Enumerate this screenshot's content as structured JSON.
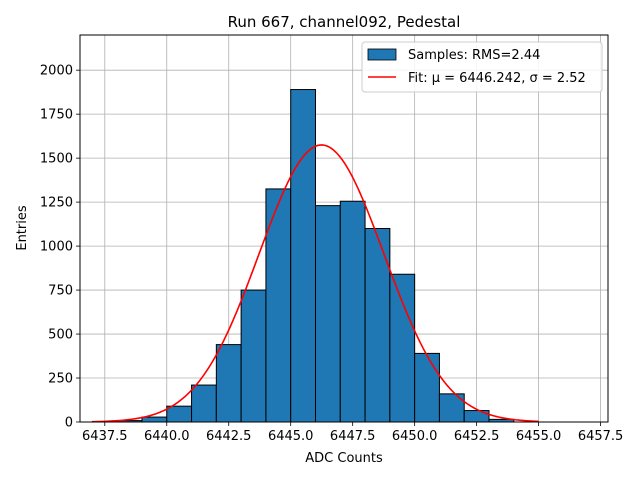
{
  "chart_data": {
    "type": "bar",
    "title": "Run 667, channel092, Pedestal",
    "xlabel": "ADC Counts",
    "ylabel": "Entries",
    "xlim": [
      6436.5,
      6457.8
    ],
    "ylim": [
      0,
      2200
    ],
    "xticks": [
      6437.5,
      6440.0,
      6442.5,
      6445.0,
      6447.5,
      6450.0,
      6452.5,
      6455.0,
      6457.5
    ],
    "xtick_labels": [
      "6437.5",
      "6440.0",
      "6442.5",
      "6445.0",
      "6447.5",
      "6450.0",
      "6452.5",
      "6455.0",
      "6457.5"
    ],
    "yticks": [
      0,
      250,
      500,
      750,
      1000,
      1250,
      1500,
      1750,
      2000
    ],
    "ytick_labels": [
      "0",
      "250",
      "500",
      "750",
      "1000",
      "1250",
      "1500",
      "1750",
      "2000"
    ],
    "grid": true,
    "legend_position": "top-right",
    "series": [
      {
        "name": "Samples: RMS=2.44",
        "kind": "histogram",
        "color": "#1f77b4",
        "edge_color": "#000000",
        "bin_edges": [
          6437,
          6438,
          6439,
          6440,
          6441,
          6442,
          6443,
          6444,
          6445,
          6446,
          6447,
          6448,
          6449,
          6450,
          6451,
          6452,
          6453,
          6454
        ],
        "counts": [
          3,
          8,
          28,
          90,
          210,
          440,
          750,
          1325,
          1890,
          1230,
          1255,
          1100,
          840,
          390,
          160,
          65,
          15
        ]
      },
      {
        "name": "Fit: μ = 6446.242, σ = 2.52",
        "kind": "line",
        "color": "#ff0000",
        "mu": 6446.242,
        "sigma": 2.52,
        "amplitude": 1575,
        "x_range": [
          6437.0,
          6455.0
        ]
      }
    ]
  }
}
